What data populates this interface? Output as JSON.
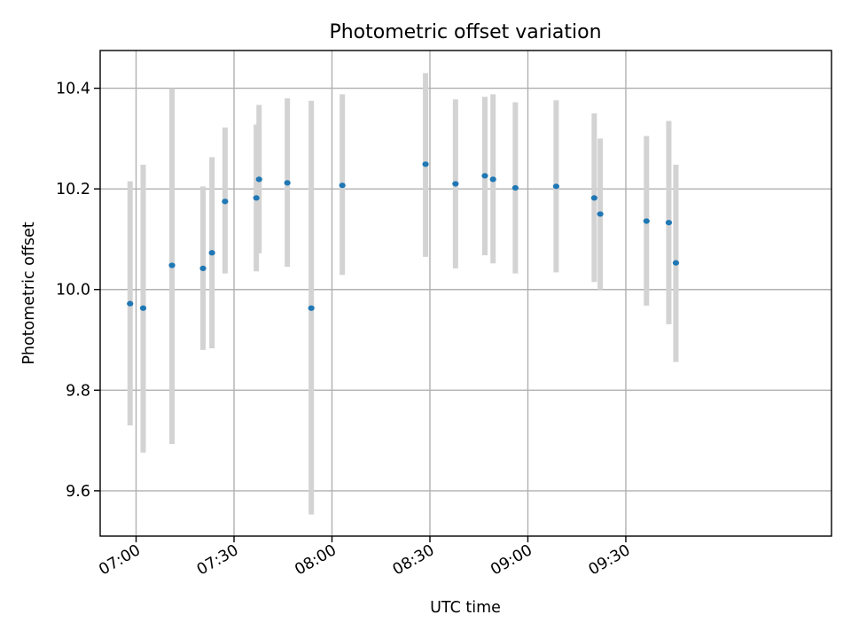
{
  "chart_data": {
    "type": "scatter",
    "title": "Photometric offset variation",
    "xlabel": "UTC time",
    "ylabel": "Photometric offset",
    "x_is_time": true,
    "xlim": [
      "06:49",
      "10:33"
    ],
    "ylim": [
      9.51,
      10.475
    ],
    "xticks": [
      "07:00",
      "07:30",
      "08:00",
      "08:30",
      "09:00",
      "09:30"
    ],
    "yticks": [
      9.6,
      9.8,
      10.0,
      10.2,
      10.4
    ],
    "grid": true,
    "legend": "none",
    "colors": {
      "points": "#1f77b4",
      "errorbars": "#d3d3d3",
      "grid": "#b0b0b0"
    },
    "points": [
      {
        "x": "06:58:10",
        "y": 9.972,
        "ylow": 9.73,
        "yhigh": 10.215
      },
      {
        "x": "07:02:10",
        "y": 9.963,
        "ylow": 9.676,
        "yhigh": 10.248
      },
      {
        "x": "07:11:00",
        "y": 10.048,
        "ylow": 9.693,
        "yhigh": 10.4
      },
      {
        "x": "07:20:30",
        "y": 10.042,
        "ylow": 9.88,
        "yhigh": 10.205
      },
      {
        "x": "07:23:15",
        "y": 10.073,
        "ylow": 9.883,
        "yhigh": 10.263
      },
      {
        "x": "07:27:15",
        "y": 10.175,
        "ylow": 10.032,
        "yhigh": 10.322
      },
      {
        "x": "07:36:50",
        "y": 10.182,
        "ylow": 10.036,
        "yhigh": 10.328
      },
      {
        "x": "07:37:40",
        "y": 10.219,
        "ylow": 10.072,
        "yhigh": 10.367
      },
      {
        "x": "07:46:20",
        "y": 10.212,
        "ylow": 10.045,
        "yhigh": 10.38
      },
      {
        "x": "07:53:40",
        "y": 9.963,
        "ylow": 9.553,
        "yhigh": 10.375
      },
      {
        "x": "08:03:10",
        "y": 10.207,
        "ylow": 10.029,
        "yhigh": 10.388
      },
      {
        "x": "08:28:40",
        "y": 10.249,
        "ylow": 10.065,
        "yhigh": 10.43
      },
      {
        "x": "08:37:50",
        "y": 10.21,
        "ylow": 10.042,
        "yhigh": 10.378
      },
      {
        "x": "08:46:50",
        "y": 10.226,
        "ylow": 10.068,
        "yhigh": 10.383
      },
      {
        "x": "08:49:20",
        "y": 10.219,
        "ylow": 10.052,
        "yhigh": 10.388
      },
      {
        "x": "08:56:10",
        "y": 10.202,
        "ylow": 10.032,
        "yhigh": 10.372
      },
      {
        "x": "09:08:40",
        "y": 10.205,
        "ylow": 10.034,
        "yhigh": 10.376
      },
      {
        "x": "09:20:20",
        "y": 10.182,
        "ylow": 10.015,
        "yhigh": 10.35
      },
      {
        "x": "09:22:10",
        "y": 10.15,
        "ylow": 10.0,
        "yhigh": 10.3
      },
      {
        "x": "09:36:20",
        "y": 10.136,
        "ylow": 9.968,
        "yhigh": 10.305
      },
      {
        "x": "09:43:10",
        "y": 10.133,
        "ylow": 9.931,
        "yhigh": 10.335
      },
      {
        "x": "09:45:20",
        "y": 10.053,
        "ylow": 9.856,
        "yhigh": 10.248
      }
    ]
  }
}
